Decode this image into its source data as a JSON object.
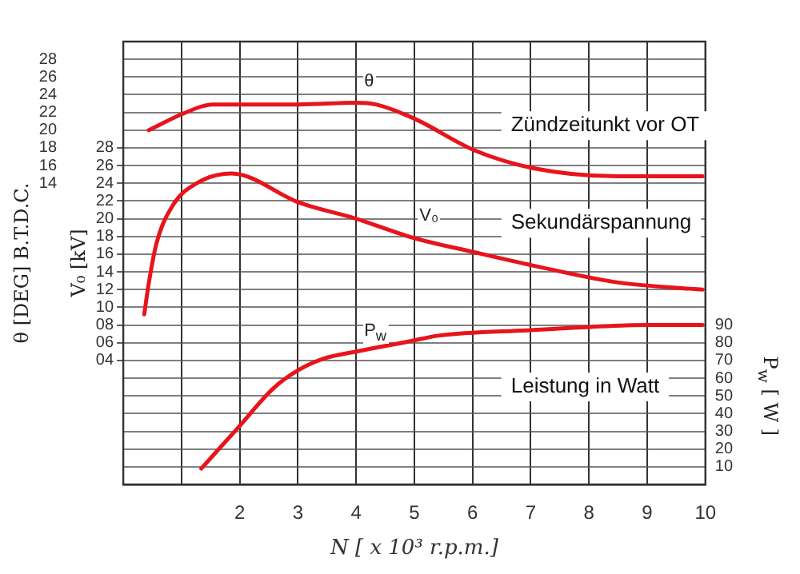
{
  "chart_data": {
    "type": "line",
    "xlabel": "N [ x 10³ r.p.m.]",
    "ylabel": "θ [DEG] B.T.D.C.",
    "y2label": "V₀ [kV]",
    "y3label": "P$_{w}$ [ W ]",
    "xlim": [
      0,
      10
    ],
    "xticks": [
      {
        "value": 0,
        "label": null
      },
      {
        "value": 1,
        "label": null
      },
      2,
      3,
      4,
      5,
      6,
      7,
      8,
      9,
      10
    ],
    "ylim": [
      -20,
      30
    ],
    "yticks": [
      14,
      16,
      18,
      20,
      22,
      24,
      26,
      28
    ],
    "y2lim": [
      -10,
      40
    ],
    "y2ticks": [
      {
        "value": -8,
        "label": null
      },
      {
        "value": -6,
        "label": null
      },
      {
        "value": -4,
        "label": null
      },
      {
        "value": -2,
        "label": null
      },
      {
        "value": 0,
        "label": null
      },
      {
        "value": 2,
        "label": null
      },
      {
        "value": 4,
        "label": "04"
      },
      {
        "value": 6,
        "label": "06"
      },
      {
        "value": 8,
        "label": "08"
      },
      10,
      12,
      14,
      16,
      18,
      20,
      22,
      24,
      26,
      28,
      {
        "value": 30,
        "label": null
      },
      {
        "value": 32,
        "label": null
      },
      {
        "value": 34,
        "label": null
      },
      {
        "value": 36,
        "label": null
      },
      {
        "value": 38,
        "label": null
      }
    ],
    "y3lim": [
      0,
      250
    ],
    "y3ticks": [
      10,
      20,
      30,
      40,
      50,
      60,
      70,
      80,
      90
    ],
    "grid": true,
    "legend": false,
    "marker": "none",
    "line_style": "solid",
    "series": [
      {
        "name": "θ",
        "color": "#e8141c",
        "x": [
          0.44,
          1.04,
          1.53,
          3.0,
          4.0,
          4.34,
          5.0,
          6.04,
          7.05,
          8.5,
          9.95
        ],
        "values": [
          20.0,
          21.9,
          22.9,
          22.9,
          23.1,
          22.9,
          21.3,
          17.7,
          15.7,
          14.8,
          14.8
        ]
      },
      {
        "name": "V₀",
        "color": "#e8141c",
        "axis": "y2",
        "x": [
          0.36,
          0.44,
          0.57,
          0.85,
          1.26,
          1.86,
          3.03,
          4.0,
          4.95,
          6.04,
          7.05,
          8.5,
          9.73,
          9.95
        ],
        "values": [
          9.2,
          12.8,
          17.2,
          21.5,
          24.0,
          25.1,
          21.8,
          20.0,
          17.9,
          16.2,
          14.7,
          12.8,
          12.1,
          12.0
        ]
      },
      {
        "name": "P$_{w}$",
        "color": "#e8141c",
        "axis": "y3",
        "x": [
          1.34,
          1.97,
          2.57,
          2.98,
          3.44,
          4.0,
          4.95,
          5.41,
          6.94,
          9.04,
          9.95
        ],
        "values": [
          9,
          32,
          54,
          64,
          71,
          75,
          81,
          84,
          87,
          90,
          90
        ]
      }
    ],
    "annotations": [
      "Zündzeitunkt vor OT",
      "Sekundärspannung",
      "Leistung in Watt"
    ]
  }
}
